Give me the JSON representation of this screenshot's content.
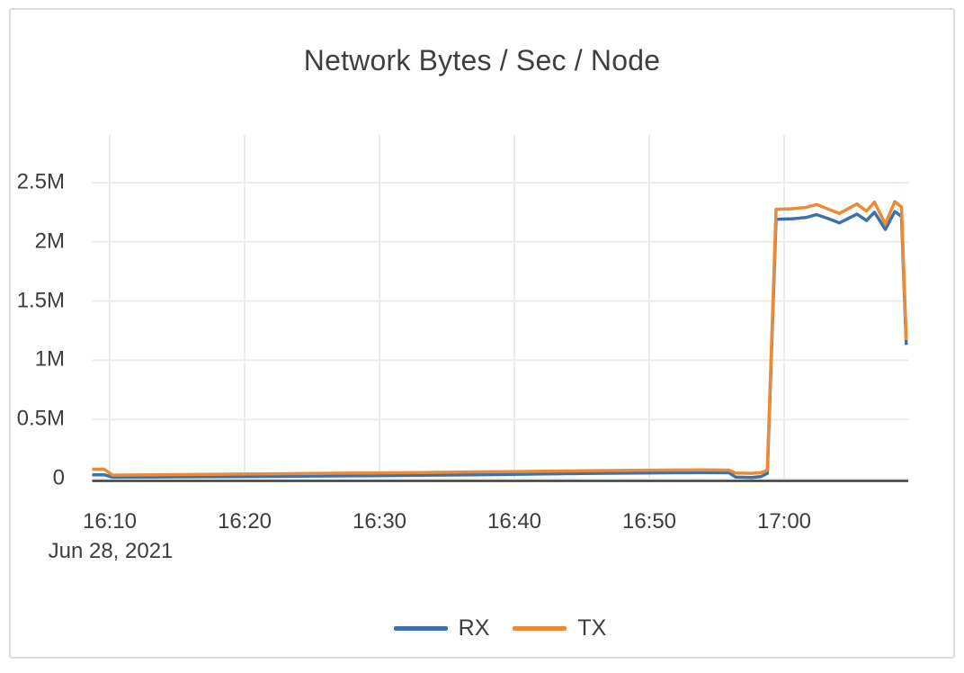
{
  "widget": {
    "title": "Network Bytes / Sec / Node"
  },
  "colors": {
    "rx_blue": "#3c72ab",
    "tx_orange": "#ec8a36",
    "grid": "#ececec",
    "axis": "#3b3b3b",
    "text": "#3d3d3d",
    "border": "#dcdcdc"
  },
  "chart_data": {
    "type": "line",
    "title": "Network Bytes / Sec / Node",
    "xlabel": "",
    "ylabel": "",
    "date_label": "Jun 28, 2021",
    "x_unit_note": "x values are minutes after 16:00 on Jun 28, 2021",
    "y_unit_note": "bytes per second per node",
    "grid": true,
    "legend_position": "bottom",
    "xlim_minutes": [
      8.7,
      69.2
    ],
    "ylim": [
      0,
      2900000
    ],
    "x_ticks": [
      {
        "label": "16:10",
        "minutes": 10
      },
      {
        "label": "16:20",
        "minutes": 20
      },
      {
        "label": "16:30",
        "minutes": 30
      },
      {
        "label": "16:40",
        "minutes": 40
      },
      {
        "label": "16:50",
        "minutes": 50
      },
      {
        "label": "17:00",
        "minutes": 60
      }
    ],
    "y_ticks": [
      {
        "label": "2.5M",
        "value": 2500000
      },
      {
        "label": "2M",
        "value": 2000000
      },
      {
        "label": "1.5M",
        "value": 1500000
      },
      {
        "label": "1M",
        "value": 1000000
      },
      {
        "label": "0.5M",
        "value": 500000
      },
      {
        "label": "0",
        "value": 0
      }
    ],
    "series": [
      {
        "name": "RX",
        "color": "#3c72ab",
        "points": [
          [
            8.7,
            33000
          ],
          [
            9.6,
            33000
          ],
          [
            10.2,
            12000
          ],
          [
            13,
            14000
          ],
          [
            17,
            16000
          ],
          [
            21,
            19000
          ],
          [
            25,
            22000
          ],
          [
            29,
            25000
          ],
          [
            33,
            29000
          ],
          [
            37,
            33000
          ],
          [
            41,
            38000
          ],
          [
            45,
            43000
          ],
          [
            49,
            47000
          ],
          [
            52,
            50000
          ],
          [
            54,
            52000
          ],
          [
            55.9,
            50000
          ],
          [
            56.4,
            14000
          ],
          [
            57.6,
            10000
          ],
          [
            58.3,
            18000
          ],
          [
            58.75,
            45000
          ],
          [
            59.4,
            2190000
          ],
          [
            60.6,
            2195000
          ],
          [
            61.6,
            2205000
          ],
          [
            62.4,
            2230000
          ],
          [
            63.3,
            2195000
          ],
          [
            64.1,
            2160000
          ],
          [
            65.4,
            2235000
          ],
          [
            66.1,
            2180000
          ],
          [
            66.7,
            2250000
          ],
          [
            67.5,
            2105000
          ],
          [
            68.2,
            2255000
          ],
          [
            68.7,
            2215000
          ],
          [
            69.05,
            1130000
          ]
        ]
      },
      {
        "name": "TX",
        "color": "#ec8a36",
        "points": [
          [
            8.7,
            80000
          ],
          [
            9.6,
            80000
          ],
          [
            10.2,
            30000
          ],
          [
            13,
            32000
          ],
          [
            17,
            36000
          ],
          [
            21,
            40000
          ],
          [
            25,
            44000
          ],
          [
            29,
            48000
          ],
          [
            33,
            52000
          ],
          [
            37,
            57000
          ],
          [
            41,
            61000
          ],
          [
            45,
            66000
          ],
          [
            49,
            70000
          ],
          [
            52,
            73000
          ],
          [
            54,
            74000
          ],
          [
            55.9,
            72000
          ],
          [
            56.4,
            48000
          ],
          [
            57.6,
            45000
          ],
          [
            58.3,
            52000
          ],
          [
            58.75,
            72000
          ],
          [
            59.4,
            2275000
          ],
          [
            60.6,
            2280000
          ],
          [
            61.6,
            2290000
          ],
          [
            62.4,
            2315000
          ],
          [
            63.3,
            2275000
          ],
          [
            64.1,
            2240000
          ],
          [
            65.4,
            2320000
          ],
          [
            66.1,
            2260000
          ],
          [
            66.7,
            2335000
          ],
          [
            67.5,
            2150000
          ],
          [
            68.2,
            2340000
          ],
          [
            68.7,
            2295000
          ],
          [
            69.05,
            1170000
          ]
        ]
      }
    ]
  }
}
